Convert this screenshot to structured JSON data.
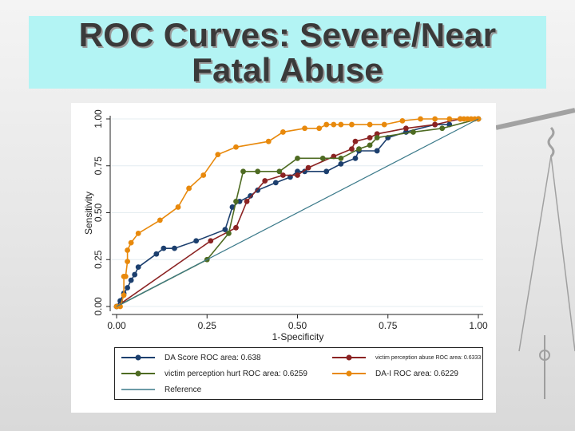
{
  "title": {
    "line1": "ROC Curves: Severe/Near",
    "line2": "Fatal Abuse"
  },
  "chart_data": {
    "type": "line",
    "xlabel": "1-Specificity",
    "ylabel": "Sensitivity",
    "xlim": [
      0,
      1
    ],
    "ylim": [
      0,
      1
    ],
    "xticks": [
      "0.00",
      "0.25",
      "0.50",
      "0.75",
      "1.00"
    ],
    "yticks": [
      "0.00",
      "0.25",
      "0.50",
      "0.75",
      "1.00"
    ],
    "tick_values": [
      0,
      0.25,
      0.5,
      0.75,
      1
    ],
    "series": [
      {
        "name": "DA Score ROC area: 0.638",
        "color": "#1c3f6e",
        "marker": true,
        "x": [
          0,
          0.01,
          0.02,
          0.03,
          0.04,
          0.05,
          0.06,
          0.11,
          0.13,
          0.16,
          0.22,
          0.3,
          0.32,
          0.34,
          0.37,
          0.39,
          0.44,
          0.48,
          0.5,
          0.52,
          0.58,
          0.62,
          0.66,
          0.67,
          0.72,
          0.75,
          0.8,
          0.88,
          0.92
        ],
        "y": [
          0,
          0.03,
          0.07,
          0.1,
          0.14,
          0.17,
          0.21,
          0.28,
          0.31,
          0.31,
          0.35,
          0.41,
          0.53,
          0.56,
          0.59,
          0.62,
          0.66,
          0.69,
          0.72,
          0.72,
          0.72,
          0.76,
          0.79,
          0.83,
          0.83,
          0.9,
          0.93,
          0.97,
          0.97
        ]
      },
      {
        "name": "victim perception abuse ROC area: 0.6333",
        "color": "#8b2323",
        "marker": true,
        "x": [
          0,
          0.26,
          0.33,
          0.36,
          0.41,
          0.46,
          0.5,
          0.53,
          0.6,
          0.65,
          0.66,
          0.7,
          0.72,
          0.8,
          0.88,
          0.95,
          1
        ],
        "y": [
          0,
          0.35,
          0.42,
          0.56,
          0.67,
          0.7,
          0.7,
          0.74,
          0.8,
          0.84,
          0.88,
          0.9,
          0.92,
          0.95,
          0.97,
          1,
          1
        ]
      },
      {
        "name": "victim perception hurt ROC area: 0.6259",
        "color": "#4e6b22",
        "marker": true,
        "x": [
          0,
          0.25,
          0.31,
          0.33,
          0.35,
          0.39,
          0.45,
          0.5,
          0.57,
          0.62,
          0.67,
          0.7,
          0.72,
          0.82,
          0.9,
          1
        ],
        "y": [
          0,
          0.25,
          0.39,
          0.56,
          0.72,
          0.72,
          0.72,
          0.79,
          0.79,
          0.79,
          0.84,
          0.86,
          0.9,
          0.93,
          0.95,
          1
        ]
      },
      {
        "name": "DA-I ROC area: 0.6229",
        "color": "#e8890c",
        "marker": true,
        "x": [
          0,
          0.01,
          0.02,
          0.02,
          0.025,
          0.03,
          0.03,
          0.04,
          0.06,
          0.12,
          0.17,
          0.2,
          0.24,
          0.28,
          0.33,
          0.42,
          0.46,
          0.52,
          0.56,
          0.58,
          0.6,
          0.62,
          0.65,
          0.7,
          0.74,
          0.79,
          0.84,
          0.88,
          0.92,
          0.95,
          0.96,
          0.97,
          0.98,
          0.99,
          1
        ],
        "y": [
          0,
          0,
          0.06,
          0.16,
          0.16,
          0.24,
          0.3,
          0.34,
          0.39,
          0.46,
          0.53,
          0.63,
          0.7,
          0.81,
          0.85,
          0.88,
          0.93,
          0.95,
          0.95,
          0.97,
          0.97,
          0.97,
          0.97,
          0.97,
          0.97,
          0.99,
          1,
          1,
          1,
          1,
          1,
          1,
          1,
          1,
          1
        ]
      },
      {
        "name": "Reference",
        "color": "#3b7a8a",
        "marker": false,
        "x": [
          0,
          1
        ],
        "y": [
          0,
          1
        ]
      }
    ]
  },
  "legend": {
    "da_score": "DA Score ROC area: 0.638",
    "abuse": "victim perception abuse ROC area: 0.6333",
    "hurt": "victim perception hurt ROC area: 0.6259",
    "dai": "DA-I ROC area: 0.6229",
    "reference": "Reference"
  },
  "colors": {
    "da_score": "#1c3f6e",
    "abuse": "#8b2323",
    "hurt": "#4e6b22",
    "dai": "#e8890c",
    "reference": "#3b7a8a"
  }
}
